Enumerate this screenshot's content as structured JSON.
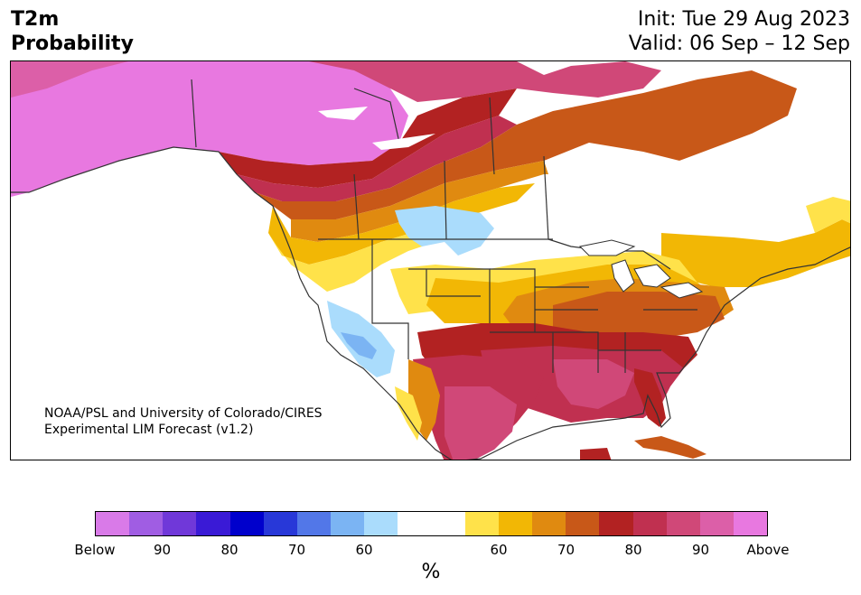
{
  "header": {
    "title_line1": "T2m",
    "title_line2": "Probability",
    "init": "Init: Tue 29 Aug 2023",
    "valid": "Valid: 06 Sep – 12 Sep"
  },
  "credit": {
    "line1": "NOAA/PSL and University of Colorado/CIRES",
    "line2": "Experimental LIM Forecast (v1.2)"
  },
  "colorbar": {
    "colors": [
      "#d97ae8",
      "#a05de3",
      "#7038d9",
      "#3a1ad6",
      "#0000cc",
      "#2838d8",
      "#5277e8",
      "#7bb4f3",
      "#aadcfc",
      "#ffffff",
      "#ffffff",
      "#ffe24a",
      "#f2b705",
      "#e08a10",
      "#c85818",
      "#b22222",
      "#c03050",
      "#d04878",
      "#dc5fa8",
      "#e878e0"
    ],
    "ticks": [
      "Below",
      "90",
      "80",
      "70",
      "60",
      "60",
      "70",
      "80",
      "90",
      "Above"
    ],
    "unit": "%"
  },
  "legend_colors": {
    "above_90": "#e878e0",
    "above_80": "#c03050",
    "above_70": "#c85818",
    "above_60": "#f2b705",
    "above_50": "#ffe24a",
    "below_60": "#aadcfc",
    "below_70": "#7bb4f3",
    "below_80": "#5277e8"
  }
}
